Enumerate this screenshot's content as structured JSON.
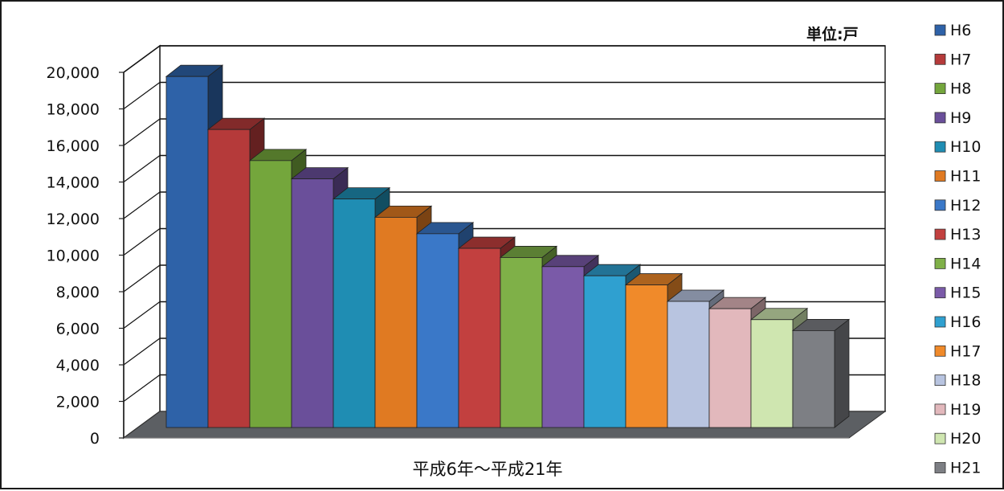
{
  "chart_data": {
    "type": "bar",
    "categories": [
      "H6",
      "H7",
      "H8",
      "H9",
      "H10",
      "H11",
      "H12",
      "H13",
      "H14",
      "H15",
      "H16",
      "H17",
      "H18",
      "H19",
      "H20",
      "H21"
    ],
    "values": [
      19200,
      16300,
      14600,
      13600,
      12500,
      11500,
      10600,
      9800,
      9300,
      8800,
      8300,
      7800,
      6900,
      6500,
      5900,
      5300
    ],
    "colors": [
      "#2e62a8",
      "#b53a3a",
      "#74a63c",
      "#6a4f9a",
      "#1f8db3",
      "#e07a22",
      "#3a78c8",
      "#c2403f",
      "#7fb048",
      "#7a5aa8",
      "#2fa0d0",
      "#f08a2a",
      "#b8c4e0",
      "#e2b8bc",
      "#cfe6b0",
      "#7d7f84"
    ],
    "unit_label": "単位:戸",
    "xlabel": "平成6年～平成21年",
    "ylabel": "",
    "yticks": [
      "0",
      "2,000",
      "4,000",
      "6,000",
      "8,000",
      "10,000",
      "12,000",
      "14,000",
      "16,000",
      "18,000",
      "20,000"
    ],
    "ylim": [
      0,
      20000
    ],
    "grid": true,
    "legend_position": "right",
    "style": "3d-column"
  }
}
